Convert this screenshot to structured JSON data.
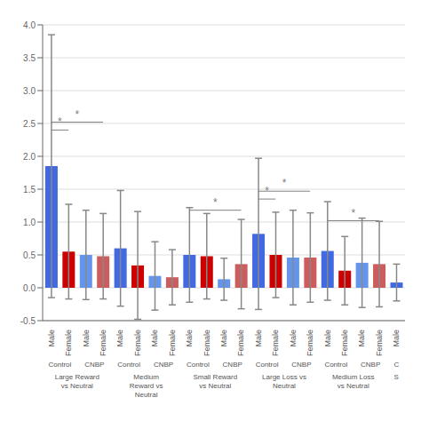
{
  "chart_data": {
    "type": "bar",
    "categories": [
      "Male",
      "Female",
      "Male",
      "Female",
      "Male",
      "Female",
      "Male",
      "Female",
      "Male",
      "Female",
      "Male",
      "Female",
      "Male",
      "Female",
      "Male",
      "Female",
      "Male",
      "Female",
      "Male",
      "Female",
      "Male"
    ],
    "values": [
      1.85,
      0.55,
      0.5,
      0.48,
      0.6,
      0.34,
      0.18,
      0.16,
      0.5,
      0.48,
      0.13,
      0.36,
      0.82,
      0.5,
      0.46,
      0.46,
      0.56,
      0.26,
      0.38,
      0.36,
      0.08
    ],
    "errors": [
      2.0,
      0.72,
      0.68,
      0.65,
      0.88,
      0.82,
      0.52,
      0.42,
      0.72,
      0.65,
      0.32,
      0.68,
      1.15,
      0.65,
      0.72,
      0.68,
      0.75,
      0.52,
      0.68,
      0.65,
      0.28
    ],
    "colors": [
      "#4169E1",
      "#CC0000",
      "#6495ED",
      "#CD5C5C",
      "#4169E1",
      "#CC0000",
      "#6495ED",
      "#CD5C5C",
      "#4169E1",
      "#CC0000",
      "#6495ED",
      "#CD5C5C",
      "#4169E1",
      "#CC0000",
      "#6495ED",
      "#CD5C5C",
      "#4169E1",
      "#CC0000",
      "#6495ED",
      "#CD5C5C",
      "#4169E1"
    ],
    "ylim": [
      -0.5,
      4.0
    ],
    "yticks": [
      -0.5,
      {
        "value": 0,
        "label": "0.0"
      },
      0.5,
      {
        "value": 1,
        "label": "1.0"
      },
      1.5,
      {
        "value": 2,
        "label": "2.0"
      },
      2.5,
      {
        "value": 3,
        "label": "3.0"
      },
      3.5,
      {
        "value": 4,
        "label": "4.0"
      }
    ],
    "grid": true,
    "subgroup_labels": [
      {
        "from": 0,
        "to": 1,
        "label": "Control"
      },
      {
        "from": 2,
        "to": 3,
        "label": "CNBP"
      },
      {
        "from": 4,
        "to": 5,
        "label": "Control"
      },
      {
        "from": 6,
        "to": 7,
        "label": "CNBP"
      },
      {
        "from": 8,
        "to": 9,
        "label": "Control"
      },
      {
        "from": 10,
        "to": 11,
        "label": "CNBP"
      },
      {
        "from": 12,
        "to": 13,
        "label": "Control"
      },
      {
        "from": 14,
        "to": 15,
        "label": "CNBP"
      },
      {
        "from": 16,
        "to": 17,
        "label": "Control"
      },
      {
        "from": 18,
        "to": 19,
        "label": "CNBP"
      },
      {
        "from": 20,
        "to": 20,
        "label": "C"
      }
    ],
    "group_labels": [
      {
        "from": 0,
        "to": 3,
        "label": "Large Reward\nvs Neutral"
      },
      {
        "from": 4,
        "to": 7,
        "label": "Medium\nReward vs\nNeutral"
      },
      {
        "from": 8,
        "to": 11,
        "label": "Small Reward\nvs Neutral"
      },
      {
        "from": 12,
        "to": 15,
        "label": "Large Loss vs\nNeutral"
      },
      {
        "from": 16,
        "to": 19,
        "label": "Medium Loss\nvs Neutral"
      },
      {
        "from": 20,
        "to": 20,
        "label": "S"
      }
    ],
    "annotations": [
      {
        "from": 0,
        "to": 1,
        "y": 2.4,
        "text": "*"
      },
      {
        "from": 0,
        "to": 3,
        "y": 2.52,
        "text": "*"
      },
      {
        "from": 8,
        "to": 11,
        "y": 1.18,
        "text": "*"
      },
      {
        "from": 12,
        "to": 13,
        "y": 1.35,
        "text": "*"
      },
      {
        "from": 12,
        "to": 15,
        "y": 1.47,
        "text": "*"
      },
      {
        "from": 16,
        "to": 19,
        "y": 1.02,
        "text": "*"
      }
    ]
  }
}
